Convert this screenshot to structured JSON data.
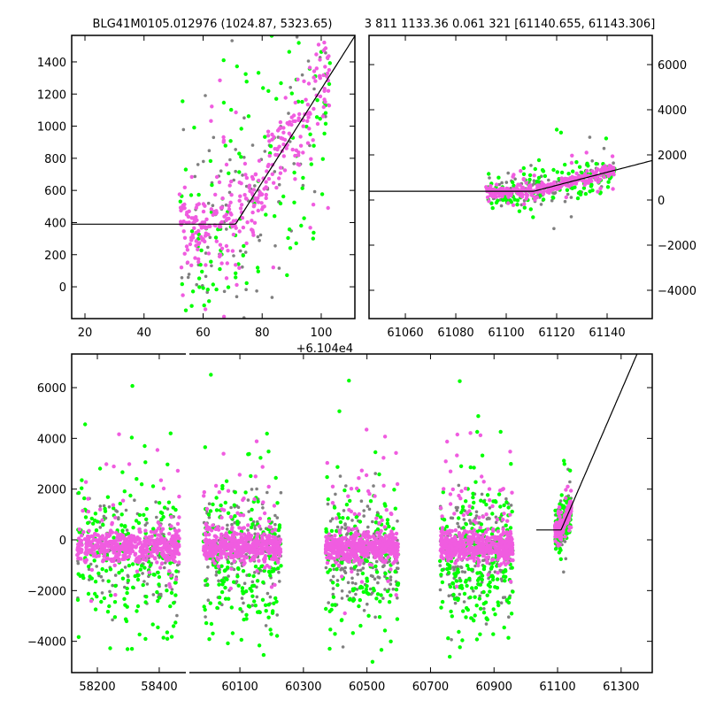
{
  "chart_data": {
    "type": "scatter",
    "titles": {
      "left": "BLG41M0105.012976 (1024.87, 5323.65)",
      "right": "3 811 1133.36 0.061 321 [61140.655, 61143.306]"
    },
    "colors": {
      "pink": "#f05ce0",
      "green": "#00ff00",
      "gray": "#808080",
      "model": "#000000"
    },
    "model_line": [
      [
        59000,
        390
      ],
      [
        61111,
        390
      ],
      [
        61400,
        8770
      ]
    ],
    "panels": [
      {
        "id": "zoom-left",
        "xlim": [
          61055.5,
          61151.4
        ],
        "ylim": [
          -198,
          1565
        ],
        "xticks": [
          61060,
          61080,
          61100,
          61120,
          61140
        ],
        "xtick_labels": [
          "20",
          "40",
          "60",
          "80",
          "100"
        ],
        "x_offset_label": "+6.104e4",
        "yticks": [
          0,
          200,
          400,
          600,
          800,
          1000,
          1200,
          1400
        ],
        "ytick_labels": [
          "0",
          "200",
          "400",
          "600",
          "800",
          "1000",
          "1200",
          "1400"
        ],
        "ytick_side": "left"
      },
      {
        "id": "zoom-right",
        "xlim": [
          61045.6,
          61157.9
        ],
        "ylim": [
          -5255,
          7294
        ],
        "xticks": [
          61060,
          61080,
          61100,
          61120,
          61140
        ],
        "xtick_labels": [
          "61060",
          "61080",
          "61100",
          "61120",
          "61140"
        ],
        "yticks": [
          -4000,
          -2000,
          0,
          2000,
          4000,
          6000
        ],
        "ytick_labels": [
          "−4000",
          "−2000",
          "0",
          "2000",
          "4000",
          "6000"
        ],
        "ytick_side": "right"
      },
      {
        "id": "full-seg1",
        "xlim": [
          58117,
          58486
        ],
        "ylim": [
          -5233,
          7326
        ],
        "xticks": [
          58200,
          58400
        ],
        "xtick_labels": [
          "58200",
          "58400"
        ],
        "yticks": [
          -4000,
          -2000,
          0,
          2000,
          4000,
          6000
        ],
        "ytick_labels": [
          "−4000",
          "−2000",
          "0",
          "2000",
          "4000",
          "6000"
        ],
        "ytick_side": "left"
      },
      {
        "id": "full-seg2",
        "xlim": [
          59941,
          61398
        ],
        "ylim": [
          -5233,
          7326
        ],
        "xticks": [
          60100,
          60300,
          60500,
          60700,
          60900,
          61100,
          61300
        ],
        "xtick_labels": [
          "60100",
          "60300",
          "60500",
          "60700",
          "60900",
          "61100",
          "61300"
        ],
        "yticks": [],
        "ytick_labels": [],
        "ytick_side": "none"
      }
    ],
    "seasons": [
      {
        "t": [
          58135,
          58465
        ],
        "base": -300,
        "n_pink": 500,
        "n_green": 220,
        "n_gray": 120,
        "follows_model": false
      },
      {
        "t": [
          59985,
          60230
        ],
        "base": -300,
        "n_pink": 500,
        "n_green": 220,
        "n_gray": 160,
        "follows_model": false
      },
      {
        "t": [
          60370,
          60600
        ],
        "base": -300,
        "n_pink": 500,
        "n_green": 160,
        "n_gray": 220,
        "follows_model": false
      },
      {
        "t": [
          60730,
          60960
        ],
        "base": -300,
        "n_pink": 500,
        "n_green": 250,
        "n_gray": 200,
        "follows_model": false
      },
      {
        "t": [
          61092,
          61143
        ],
        "base": 390,
        "n_pink": 330,
        "n_green": 140,
        "n_gray": 110,
        "follows_model": true
      }
    ]
  }
}
